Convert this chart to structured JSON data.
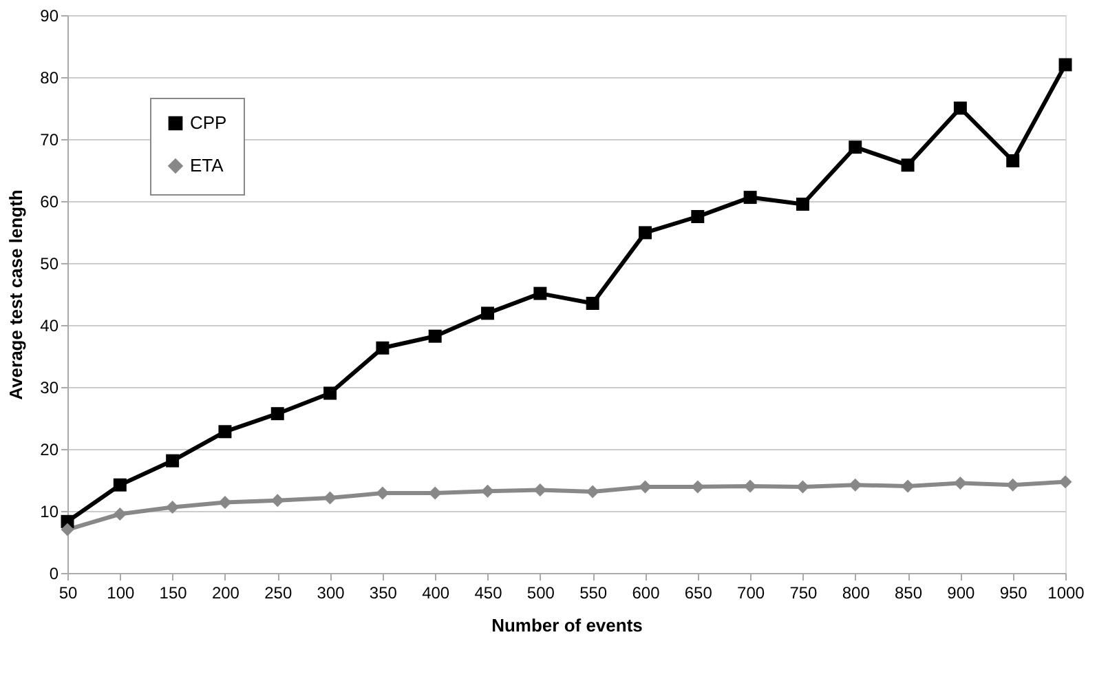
{
  "chart_data": {
    "type": "line",
    "xlabel": "Number of events",
    "ylabel": "Average test case length",
    "categories": [
      "50",
      "100",
      "150",
      "200",
      "250",
      "300",
      "350",
      "400",
      "450",
      "500",
      "550",
      "600",
      "650",
      "700",
      "750",
      "800",
      "850",
      "900",
      "950",
      "1000"
    ],
    "series": [
      {
        "name": "CPP",
        "color": "#000000",
        "marker": "square",
        "values": [
          8.3,
          14.2,
          18.1,
          22.8,
          25.7,
          29.0,
          36.3,
          38.2,
          41.9,
          45.1,
          43.5,
          54.9,
          57.5,
          60.6,
          59.5,
          68.7,
          65.8,
          75.0,
          66.5,
          82.0
        ]
      },
      {
        "name": "ETA",
        "color": "#888888",
        "marker": "diamond",
        "values": [
          7.0,
          9.5,
          10.6,
          11.4,
          11.7,
          12.1,
          12.9,
          12.9,
          13.2,
          13.4,
          13.1,
          13.9,
          13.9,
          14.0,
          13.9,
          14.2,
          14.0,
          14.5,
          14.2,
          14.7
        ]
      }
    ],
    "ylim": [
      0,
      90
    ],
    "yticks": [
      0,
      10,
      20,
      30,
      40,
      50,
      60,
      70,
      80,
      90
    ],
    "grid": "y",
    "legend": "top left",
    "line_style": "solid"
  }
}
